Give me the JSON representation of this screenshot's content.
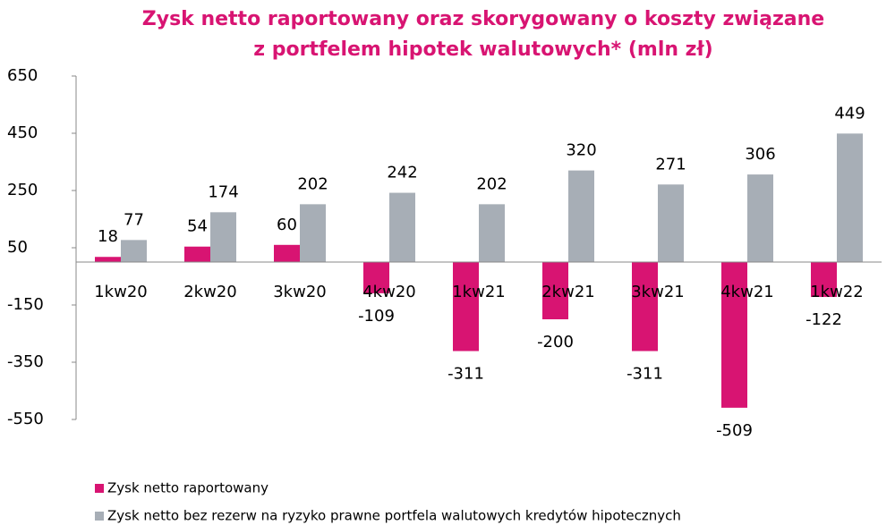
{
  "chart_data": {
    "type": "bar",
    "title": [
      "Zysk netto raportowany oraz skorygowany o koszty związane",
      "z portfelem hipotek walutowych* (mln zł)"
    ],
    "categories": [
      "1kw20",
      "2kw20",
      "3kw20",
      "4kw20",
      "1kw21",
      "2kw21",
      "3kw21",
      "4kw21",
      "1kw22"
    ],
    "series": [
      {
        "name": "Zysk netto raportowany",
        "color": "#d81472",
        "values": [
          18,
          54,
          60,
          -109,
          -311,
          -200,
          -311,
          -509,
          -122
        ]
      },
      {
        "name": "Zysk netto bez rezerw na ryzyko prawne portfela walutowych kredytów hipotecznych",
        "color": "#a7aeb6",
        "values": [
          77,
          174,
          202,
          242,
          202,
          320,
          271,
          306,
          449
        ]
      }
    ],
    "ylim": [
      -550,
      650
    ],
    "yticks": [
      -550,
      -350,
      -150,
      50,
      250,
      450,
      650
    ],
    "grid": false,
    "legend": "bottom"
  }
}
